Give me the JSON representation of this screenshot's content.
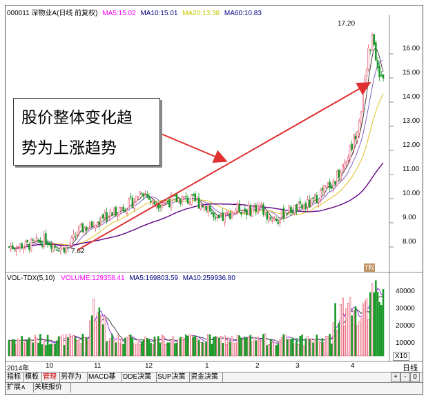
{
  "price_header": {
    "code_name": "000011 深物业A(日线 前复权)",
    "ma5_label": "MA5:",
    "ma5": "15.02",
    "ma10_label": "MA10:",
    "ma10": "15.01",
    "ma20_label": "MA20:",
    "ma20": "13.38",
    "ma60_label": "MA60:",
    "ma60": "10.83"
  },
  "vol_header": {
    "name": "VOL-TDX(5,10)",
    "volume_label": "VOLUME:",
    "volume": "129358.41",
    "ma5_label": "MA5:",
    "ma5": "169803.59",
    "ma10_label": "MA10:",
    "ma10": "259936.80"
  },
  "price_axis": [
    "16.00",
    "15.00",
    "14.00",
    "13.00",
    "12.00",
    "11.00",
    "10.00",
    "9.00",
    "8.00"
  ],
  "vol_axis": [
    "40000",
    "30000",
    "20000",
    "10000"
  ],
  "vol_unit": "X10",
  "date_axis": [
    "2014年",
    "10",
    "11",
    "12",
    "1",
    "2",
    "3",
    "4"
  ],
  "period": "日线",
  "high_mark": "17.20",
  "low_mark": "7.62",
  "annotation": {
    "line1": "股价整体变化趋",
    "line2": "势为上涨趋势"
  },
  "stamp": "T权",
  "tabs_row1": [
    "指标",
    "模板",
    "管理",
    "另存为",
    "MACD基本",
    "DDE决策",
    "SUP决策",
    "资金决策"
  ],
  "active_tab": "管理",
  "tabs_row2": [
    "扩展∧",
    "关联报价"
  ],
  "buttons": {
    "plus": "+",
    "minus": "-",
    "zero": "0"
  },
  "colors": {
    "up": "#e8506a",
    "down": "#1a9a2a",
    "ma5": "#404040",
    "ma10": "#8060c0",
    "ma20": "#e0c020",
    "ma60": "#600080",
    "arrow": "#e03030",
    "ma5_hdr": "#ff00ff",
    "ma10_hdr": "#000080",
    "ma20_hdr": "#cccc00",
    "ma60_hdr": "#000080"
  },
  "chart_data": {
    "type": "candlestick",
    "period": "daily",
    "price_ticks": [
      8,
      9,
      10,
      11,
      12,
      13,
      14,
      15,
      16
    ],
    "volume_ticks": [
      10000,
      20000,
      30000,
      40000
    ],
    "month_ticks": [
      "2014年",
      "10",
      "11",
      "12",
      "1",
      "2",
      "3",
      "4"
    ],
    "marked_high": 17.2,
    "marked_low": 7.62,
    "ma_latest": {
      "MA5": 15.02,
      "MA10": 15.01,
      "MA20": 13.38,
      "MA60": 10.83
    },
    "volume_latest": {
      "VOLUME": 129358.41,
      "MA5": 169803.59,
      "MA10": 259936.8
    }
  }
}
